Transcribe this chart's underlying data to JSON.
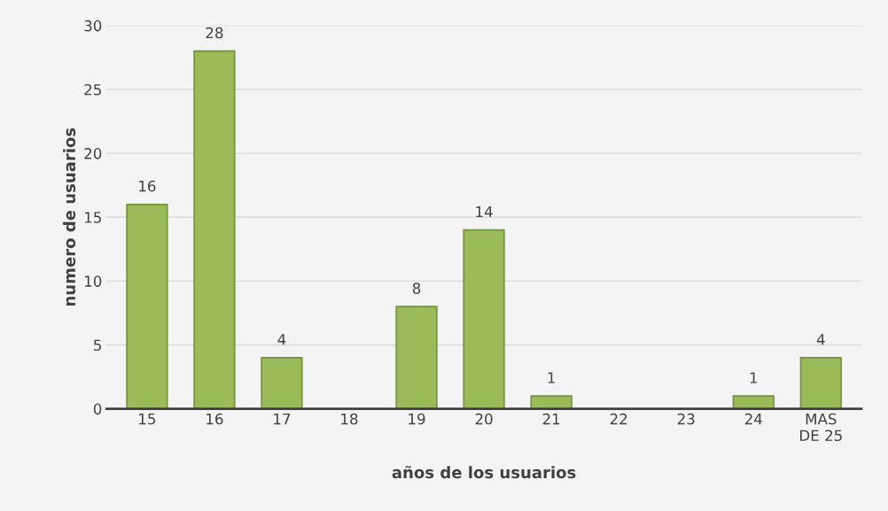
{
  "chart_data": {
    "type": "bar",
    "xlabel": "años de los usuarios",
    "ylabel": "numero de usuarios",
    "categories": [
      "15",
      "16",
      "17",
      "18",
      "19",
      "20",
      "21",
      "22",
      "23",
      "24",
      "MAS\nDE 25"
    ],
    "values": [
      16,
      28,
      4,
      0,
      8,
      14,
      1,
      0,
      0,
      1,
      4
    ],
    "value_labels": [
      "16",
      "28",
      "4",
      null,
      "8",
      "14",
      "1",
      null,
      null,
      "1",
      "4"
    ],
    "color": "#9bbb59",
    "ylim": [
      0,
      30
    ],
    "yticks": [
      0,
      5,
      10,
      15,
      20,
      25,
      30
    ],
    "grid": "y"
  }
}
